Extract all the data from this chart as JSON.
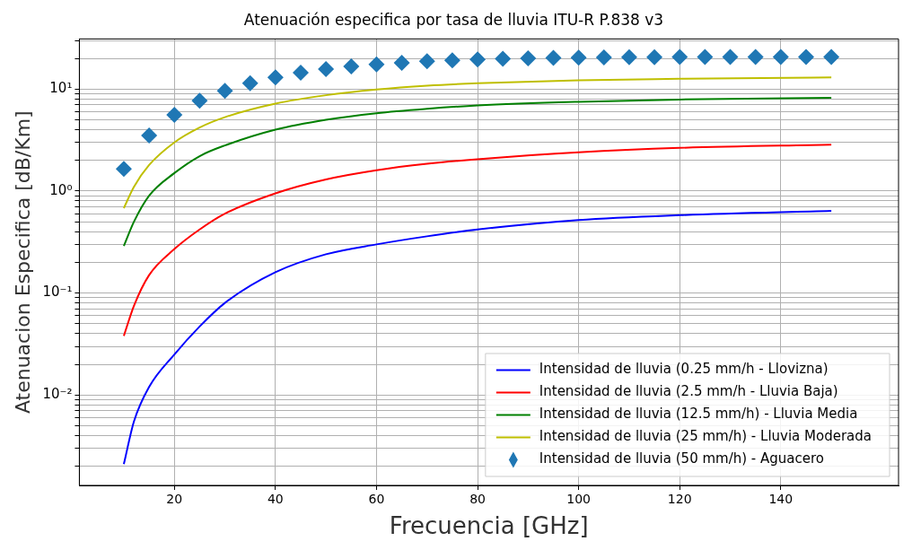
{
  "chart_data": {
    "type": "line",
    "title": "Atenuación especifica por tasa de lluvia ITU-R P.838 v3",
    "xlabel": "Frecuencia [GHz]",
    "ylabel": "Atenuacion Especifica [dB/Km]",
    "x": [
      10,
      12,
      15,
      20,
      25,
      30,
      40,
      50,
      60,
      70,
      80,
      100,
      120,
      150
    ],
    "series": [
      {
        "name": "Intensidad de lluvia (0.25 mm/h - Llovizna)",
        "color": "#0000ff",
        "values": [
          0.0021,
          0.0055,
          0.012,
          0.025,
          0.047,
          0.08,
          0.16,
          0.24,
          0.3,
          0.36,
          0.42,
          0.52,
          0.58,
          0.64
        ]
      },
      {
        "name": "Intensidad de lluvia (2.5 mm/h - Lluvia Baja)",
        "color": "#ff0000",
        "values": [
          0.038,
          0.075,
          0.15,
          0.27,
          0.42,
          0.6,
          0.95,
          1.3,
          1.6,
          1.85,
          2.05,
          2.4,
          2.65,
          2.85
        ]
      },
      {
        "name": "Intensidad de lluvia (12.5 mm/h) - Lluvia Media",
        "color": "#008000",
        "values": [
          0.29,
          0.5,
          0.9,
          1.5,
          2.2,
          2.8,
          4.0,
          5.0,
          5.8,
          6.4,
          6.9,
          7.5,
          7.9,
          8.2
        ]
      },
      {
        "name": "Intensidad de lluvia (25 mm/h) - Lluvia Moderada",
        "color": "#bfbf00",
        "values": [
          0.68,
          1.1,
          1.8,
          3.0,
          4.2,
          5.3,
          7.2,
          8.7,
          9.9,
          10.8,
          11.4,
          12.2,
          12.6,
          13
        ]
      },
      {
        "name": "Intensidad de lluvia (50 mm/h) - Aguacero",
        "color": "#1f77b4",
        "type": "scatter",
        "marker": "diamond",
        "x": [
          10,
          15,
          20,
          25,
          30,
          35,
          40,
          45,
          50,
          55,
          60,
          65,
          70,
          75,
          80,
          85,
          90,
          95,
          100,
          105,
          110,
          115,
          120,
          125,
          130,
          135,
          140,
          145,
          150
        ],
        "values": [
          1.65,
          3.5,
          5.6,
          7.7,
          9.6,
          11.4,
          13,
          14.5,
          15.7,
          16.7,
          17.5,
          18.1,
          18.7,
          19.1,
          19.5,
          19.8,
          20,
          20.2,
          20.3,
          20.4,
          20.5,
          20.5,
          20.6,
          20.6,
          20.6,
          20.6,
          20.6,
          20.6,
          20.6
        ]
      }
    ],
    "xlim": [
      1.2,
      163.3
    ],
    "xticks": [
      20,
      40,
      60,
      80,
      100,
      120,
      140
    ],
    "log": "y",
    "ylim": [
      0.0013,
      31
    ],
    "yticks": [
      {
        "value": 0.002,
        "label": null
      },
      {
        "value": 0.003,
        "label": null
      },
      {
        "value": 0.004,
        "label": null
      },
      {
        "value": 0.005,
        "label": null
      },
      {
        "value": 0.006,
        "label": null
      },
      {
        "value": 0.007,
        "label": null
      },
      {
        "value": 0.008,
        "label": null
      },
      {
        "value": 0.009,
        "label": null
      },
      {
        "value": 0.01,
        "label": "10⁻²"
      },
      {
        "value": 0.02,
        "label": null
      },
      {
        "value": 0.03,
        "label": null
      },
      {
        "value": 0.04,
        "label": null
      },
      {
        "value": 0.05,
        "label": null
      },
      {
        "value": 0.06,
        "label": null
      },
      {
        "value": 0.07,
        "label": null
      },
      {
        "value": 0.08,
        "label": null
      },
      {
        "value": 0.09,
        "label": null
      },
      {
        "value": 0.1,
        "label": "10⁻¹"
      },
      {
        "value": 0.2,
        "label": null
      },
      {
        "value": 0.3,
        "label": null
      },
      {
        "value": 0.4,
        "label": null
      },
      {
        "value": 0.5,
        "label": null
      },
      {
        "value": 0.6,
        "label": null
      },
      {
        "value": 0.7,
        "label": null
      },
      {
        "value": 0.8,
        "label": null
      },
      {
        "value": 0.9,
        "label": null
      },
      {
        "value": 1,
        "label": "10⁰"
      },
      {
        "value": 2,
        "label": null
      },
      {
        "value": 3,
        "label": null
      },
      {
        "value": 4,
        "label": null
      },
      {
        "value": 5,
        "label": null
      },
      {
        "value": 6,
        "label": null
      },
      {
        "value": 7,
        "label": null
      },
      {
        "value": 8,
        "label": null
      },
      {
        "value": 9,
        "label": null
      },
      {
        "value": 10,
        "label": "10¹"
      },
      {
        "value": 20,
        "label": null
      },
      {
        "value": 30,
        "label": null
      }
    ],
    "grid": true,
    "legend": "bottom right",
    "line_style": "solid"
  }
}
